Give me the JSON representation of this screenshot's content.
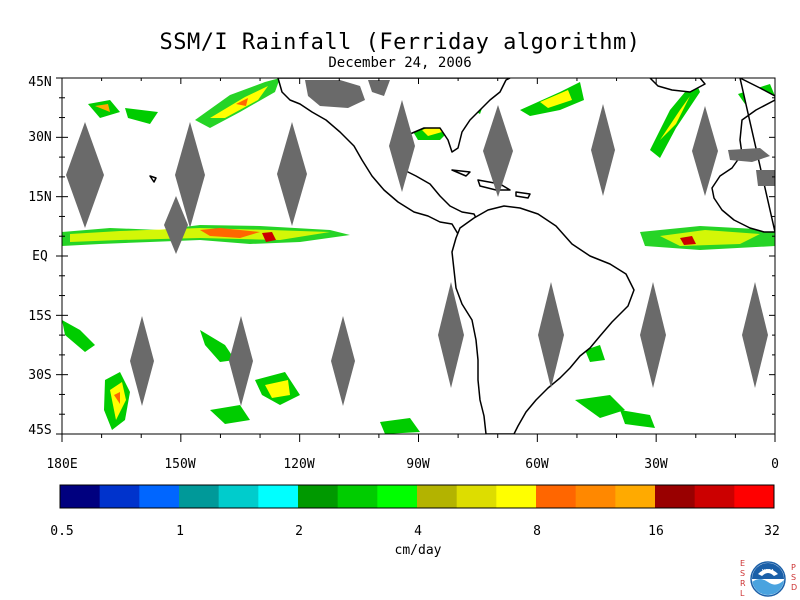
{
  "title": "SSM/I Rainfall (Ferriday algorithm)",
  "date": "December 24, 2006",
  "colors": {
    "land": "#ffffff",
    "coast": "#000000",
    "missing_swath": "#6a6a6a",
    "no_rain": "#ffffff"
  },
  "y_axis_labels": [
    "45N",
    "30N",
    "15N",
    "EQ",
    "15S",
    "30S",
    "45S"
  ],
  "x_axis_labels": [
    "180E",
    "150W",
    "120W",
    "90W",
    "60W",
    "30W",
    "0"
  ],
  "colorbar": {
    "unit": "cm/day",
    "tick_labels": [
      "0.5",
      "1",
      "2",
      "4",
      "8",
      "16",
      "32"
    ],
    "colors": [
      "#00007f",
      "#0033cc",
      "#0066ff",
      "#009999",
      "#00cccc",
      "#00ffff",
      "#009900",
      "#00cc00",
      "#00ff00",
      "#b3b300",
      "#dddd00",
      "#ffff00",
      "#ff6600",
      "#ff8800",
      "#ffaa00",
      "#990000",
      "#cc0000",
      "#ff0000"
    ]
  },
  "logo": {
    "left_letters": [
      "E",
      "S",
      "R",
      "L"
    ],
    "right_letters": [
      "P",
      "S",
      "D"
    ],
    "emblem_text": "NOAA"
  }
}
